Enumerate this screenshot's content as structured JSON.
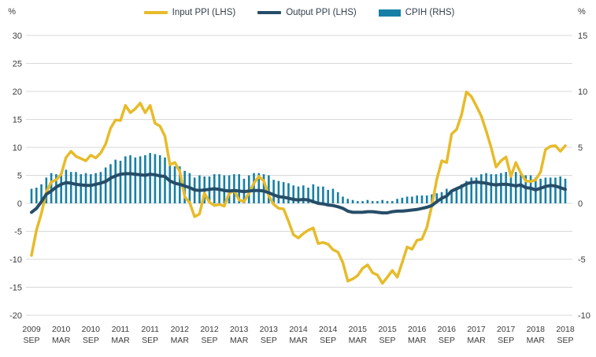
{
  "chart_data": {
    "type": "combo-line-bar",
    "left_axis": {
      "label": "%",
      "min": -20,
      "max": 30,
      "step": 5,
      "ticks": [
        30,
        25,
        20,
        15,
        10,
        5,
        0,
        -5,
        -10,
        -15,
        -20
      ]
    },
    "right_axis": {
      "label": "%",
      "min": -10,
      "max": 15,
      "step": 5,
      "ticks": [
        15,
        10,
        5,
        0,
        -5,
        -10
      ]
    },
    "grid_color": "#d9d9d9",
    "x_start": "2009 SEP",
    "x_end": "2018 SEP",
    "x_tick_every_months": 6,
    "x_tick_labels": [
      {
        "year": "2009",
        "month": "SEP"
      },
      {
        "year": "2010",
        "month": "MAR"
      },
      {
        "year": "2010",
        "month": "SEP"
      },
      {
        "year": "2011",
        "month": "MAR"
      },
      {
        "year": "2011",
        "month": "SEP"
      },
      {
        "year": "2012",
        "month": "MAR"
      },
      {
        "year": "2012",
        "month": "SEP"
      },
      {
        "year": "2013",
        "month": "MAR"
      },
      {
        "year": "2013",
        "month": "SEP"
      },
      {
        "year": "2014",
        "month": "MAR"
      },
      {
        "year": "2014",
        "month": "SEP"
      },
      {
        "year": "2015",
        "month": "MAR"
      },
      {
        "year": "2015",
        "month": "SEP"
      },
      {
        "year": "2016",
        "month": "MAR"
      },
      {
        "year": "2016",
        "month": "SEP"
      },
      {
        "year": "2017",
        "month": "MAR"
      },
      {
        "year": "2017",
        "month": "SEP"
      },
      {
        "year": "2018",
        "month": "MAR"
      },
      {
        "year": "2018",
        "month": "SEP"
      }
    ],
    "series": [
      {
        "name": "Input PPI (LHS)",
        "type": "line",
        "axis": "left",
        "color": "#E7BB2A",
        "values": [
          -9.3,
          -4.8,
          -1.8,
          2.0,
          3.8,
          4.2,
          5.2,
          8.2,
          9.3,
          8.4,
          8.0,
          7.6,
          8.6,
          8.1,
          9.0,
          10.6,
          13.4,
          14.9,
          14.8,
          17.5,
          16.2,
          16.9,
          17.9,
          16.2,
          17.5,
          14.3,
          13.8,
          12.0,
          6.9,
          7.3,
          5.7,
          1.2,
          0.1,
          -2.4,
          -1.9,
          1.8,
          0.2,
          -0.4,
          -0.2,
          -0.5,
          1.8,
          2.3,
          0.6,
          0.3,
          1.8,
          3.6,
          4.8,
          4.0,
          1.4,
          -0.2,
          -0.9,
          -1.0,
          -3.2,
          -5.6,
          -6.2,
          -5.4,
          -4.8,
          -4.4,
          -7.2,
          -7.0,
          -7.3,
          -8.3,
          -8.7,
          -10.6,
          -13.9,
          -13.5,
          -12.9,
          -11.6,
          -11.0,
          -12.4,
          -12.8,
          -14.3,
          -13.2,
          -12.0,
          -13.2,
          -10.6,
          -7.8,
          -8.2,
          -6.6,
          -6.4,
          -4.3,
          -0.4,
          4.3,
          7.6,
          7.3,
          12.4,
          13.2,
          15.8,
          19.9,
          19.1,
          17.4,
          15.6,
          12.9,
          10.0,
          6.5,
          7.6,
          8.3,
          4.8,
          7.3,
          5.4,
          4.0,
          3.9,
          4.2,
          5.6,
          9.6,
          10.2,
          10.3,
          9.3,
          10.3
        ]
      },
      {
        "name": "Output PPI (LHS)",
        "type": "line",
        "axis": "left",
        "color": "#264D68",
        "values": [
          -1.6,
          -0.9,
          0.3,
          1.6,
          2.2,
          2.9,
          3.4,
          3.7,
          3.6,
          3.4,
          3.3,
          3.2,
          3.2,
          3.4,
          3.6,
          3.9,
          4.5,
          4.9,
          5.2,
          5.3,
          5.3,
          5.2,
          5.1,
          5.0,
          5.2,
          5.1,
          4.9,
          4.8,
          4.0,
          3.6,
          3.4,
          3.1,
          2.8,
          2.4,
          2.3,
          2.4,
          2.5,
          2.6,
          2.5,
          2.3,
          2.2,
          2.3,
          2.2,
          2.1,
          2.2,
          2.3,
          2.3,
          2.2,
          1.9,
          1.5,
          1.2,
          1.1,
          0.9,
          0.7,
          0.6,
          0.7,
          0.6,
          0.3,
          0.0,
          -0.1,
          -0.3,
          -0.4,
          -0.6,
          -0.9,
          -1.4,
          -1.6,
          -1.6,
          -1.6,
          -1.5,
          -1.5,
          -1.6,
          -1.7,
          -1.7,
          -1.5,
          -1.4,
          -1.4,
          -1.3,
          -1.2,
          -1.1,
          -0.9,
          -0.7,
          -0.4,
          0.3,
          0.9,
          1.3,
          2.2,
          2.6,
          3.0,
          3.5,
          3.7,
          3.8,
          3.7,
          3.6,
          3.4,
          3.3,
          3.4,
          3.4,
          3.3,
          3.1,
          3.3,
          2.8,
          2.7,
          2.4,
          2.7,
          3.0,
          3.2,
          3.1,
          2.8,
          2.5
        ]
      },
      {
        "name": "CPIH (RHS)",
        "type": "bar",
        "axis": "right",
        "color": "#177FA5",
        "values": [
          1.3,
          1.4,
          1.7,
          2.3,
          2.7,
          2.6,
          2.7,
          3.0,
          2.8,
          2.8,
          2.6,
          2.7,
          2.6,
          2.7,
          2.8,
          3.2,
          3.5,
          3.9,
          3.8,
          4.2,
          4.3,
          4.1,
          4.2,
          4.3,
          4.5,
          4.4,
          4.3,
          4.1,
          3.4,
          3.3,
          3.3,
          2.9,
          2.7,
          2.3,
          2.5,
          2.4,
          2.4,
          2.6,
          2.6,
          2.5,
          2.5,
          2.6,
          2.6,
          2.2,
          2.5,
          2.7,
          2.7,
          2.6,
          2.5,
          2.1,
          2.0,
          1.9,
          1.8,
          1.6,
          1.5,
          1.6,
          1.4,
          1.7,
          1.5,
          1.5,
          1.2,
          1.3,
          1.0,
          0.6,
          0.4,
          0.3,
          0.2,
          0.2,
          0.3,
          0.2,
          0.2,
          0.3,
          0.2,
          0.2,
          0.4,
          0.5,
          0.6,
          0.6,
          0.7,
          0.7,
          0.7,
          0.8,
          0.9,
          1.0,
          1.3,
          1.2,
          1.4,
          1.7,
          2.0,
          2.3,
          2.3,
          2.6,
          2.7,
          2.6,
          2.6,
          2.7,
          2.8,
          2.8,
          2.8,
          2.7,
          2.5,
          2.5,
          2.3,
          2.2,
          2.3,
          2.3,
          2.3,
          2.4,
          2.2
        ]
      }
    ]
  }
}
